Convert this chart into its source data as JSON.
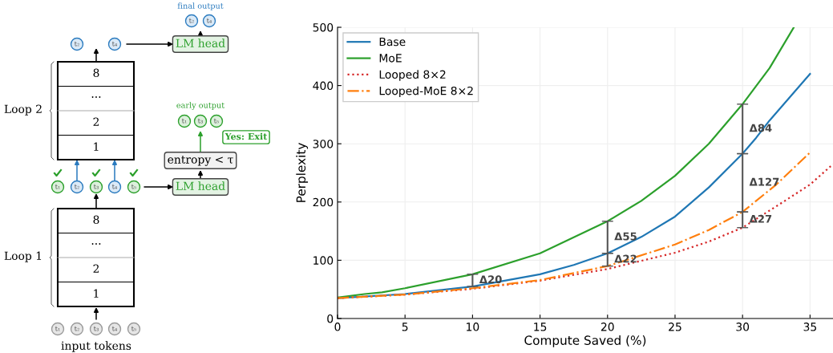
{
  "chart_data": [
    {
      "type": "other",
      "annotations": [
        "final output",
        "t₂",
        "t₄",
        "LM head",
        "t₂",
        "t₄",
        "8",
        "···",
        "2",
        "1",
        "Loop 2",
        "early output",
        "t₁",
        "t₃",
        "t₅",
        "Yes: Exit",
        "entropy < τ",
        "t₁",
        "t₂",
        "t₃",
        "t₄",
        "t₅",
        "LM head",
        "8",
        "···",
        "2",
        "1",
        "Loop 1",
        "t₁",
        "t₂",
        "t₃",
        "t₄",
        "t₅",
        "input tokens"
      ]
    },
    {
      "type": "line",
      "xlabel": "Compute Saved (%)",
      "ylabel": "Perplexity",
      "xlim": [
        0,
        36.7
      ],
      "ylim": [
        0,
        500
      ],
      "xticks": [
        0,
        5,
        10,
        15,
        20,
        25,
        30,
        35
      ],
      "yticks": [
        0,
        100,
        200,
        300,
        400,
        500
      ],
      "grid": true,
      "legend": "top left",
      "series": [
        {
          "name": "Base",
          "color": "#1f77b4",
          "line_style": "solid",
          "x": [
            0,
            5,
            10,
            15,
            17.5,
            20,
            22.5,
            25,
            27.5,
            30,
            31,
            32,
            35
          ],
          "values": [
            35,
            42,
            55,
            76,
            92,
            112,
            140,
            175,
            225,
            283,
            310,
            340,
            420
          ]
        },
        {
          "name": "MoE",
          "color": "#2ca02c",
          "line_style": "solid",
          "x": [
            0,
            2,
            3.3,
            5,
            10,
            15,
            20,
            22.5,
            25,
            27.5,
            30,
            32,
            33.8
          ],
          "values": [
            36,
            42,
            45,
            52,
            76,
            112,
            167,
            202,
            245,
            300,
            368,
            430,
            500
          ]
        },
        {
          "name": "Looped 8×2",
          "color": "#d62728",
          "line_style": "dotted",
          "x": [
            0,
            5,
            10,
            15,
            20,
            25,
            27.5,
            30,
            33,
            35,
            36.7
          ],
          "values": [
            35,
            41,
            51,
            65,
            85,
            113,
            132,
            156,
            200,
            230,
            265
          ]
        },
        {
          "name": "Looped-MoE 8×2",
          "color": "#ff7f0e",
          "line_style": "dashdot",
          "x": [
            0,
            5,
            10,
            15,
            20,
            25,
            27.5,
            30,
            32.5,
            35
          ],
          "values": [
            35,
            41,
            52,
            66,
            90,
            127,
            152,
            183,
            230,
            285
          ]
        }
      ],
      "annotations": [
        {
          "text": "Δ20",
          "x": 10,
          "y": 76
        },
        {
          "text": "Δ55",
          "x": 20,
          "y": 167
        },
        {
          "text": "Δ22",
          "x": 20,
          "y": 112
        },
        {
          "text": "Δ84",
          "x": 30,
          "y": 368
        },
        {
          "text": "Δ127",
          "x": 30,
          "y": 283
        },
        {
          "text": "Δ27",
          "x": 30,
          "y": 183
        }
      ]
    }
  ]
}
